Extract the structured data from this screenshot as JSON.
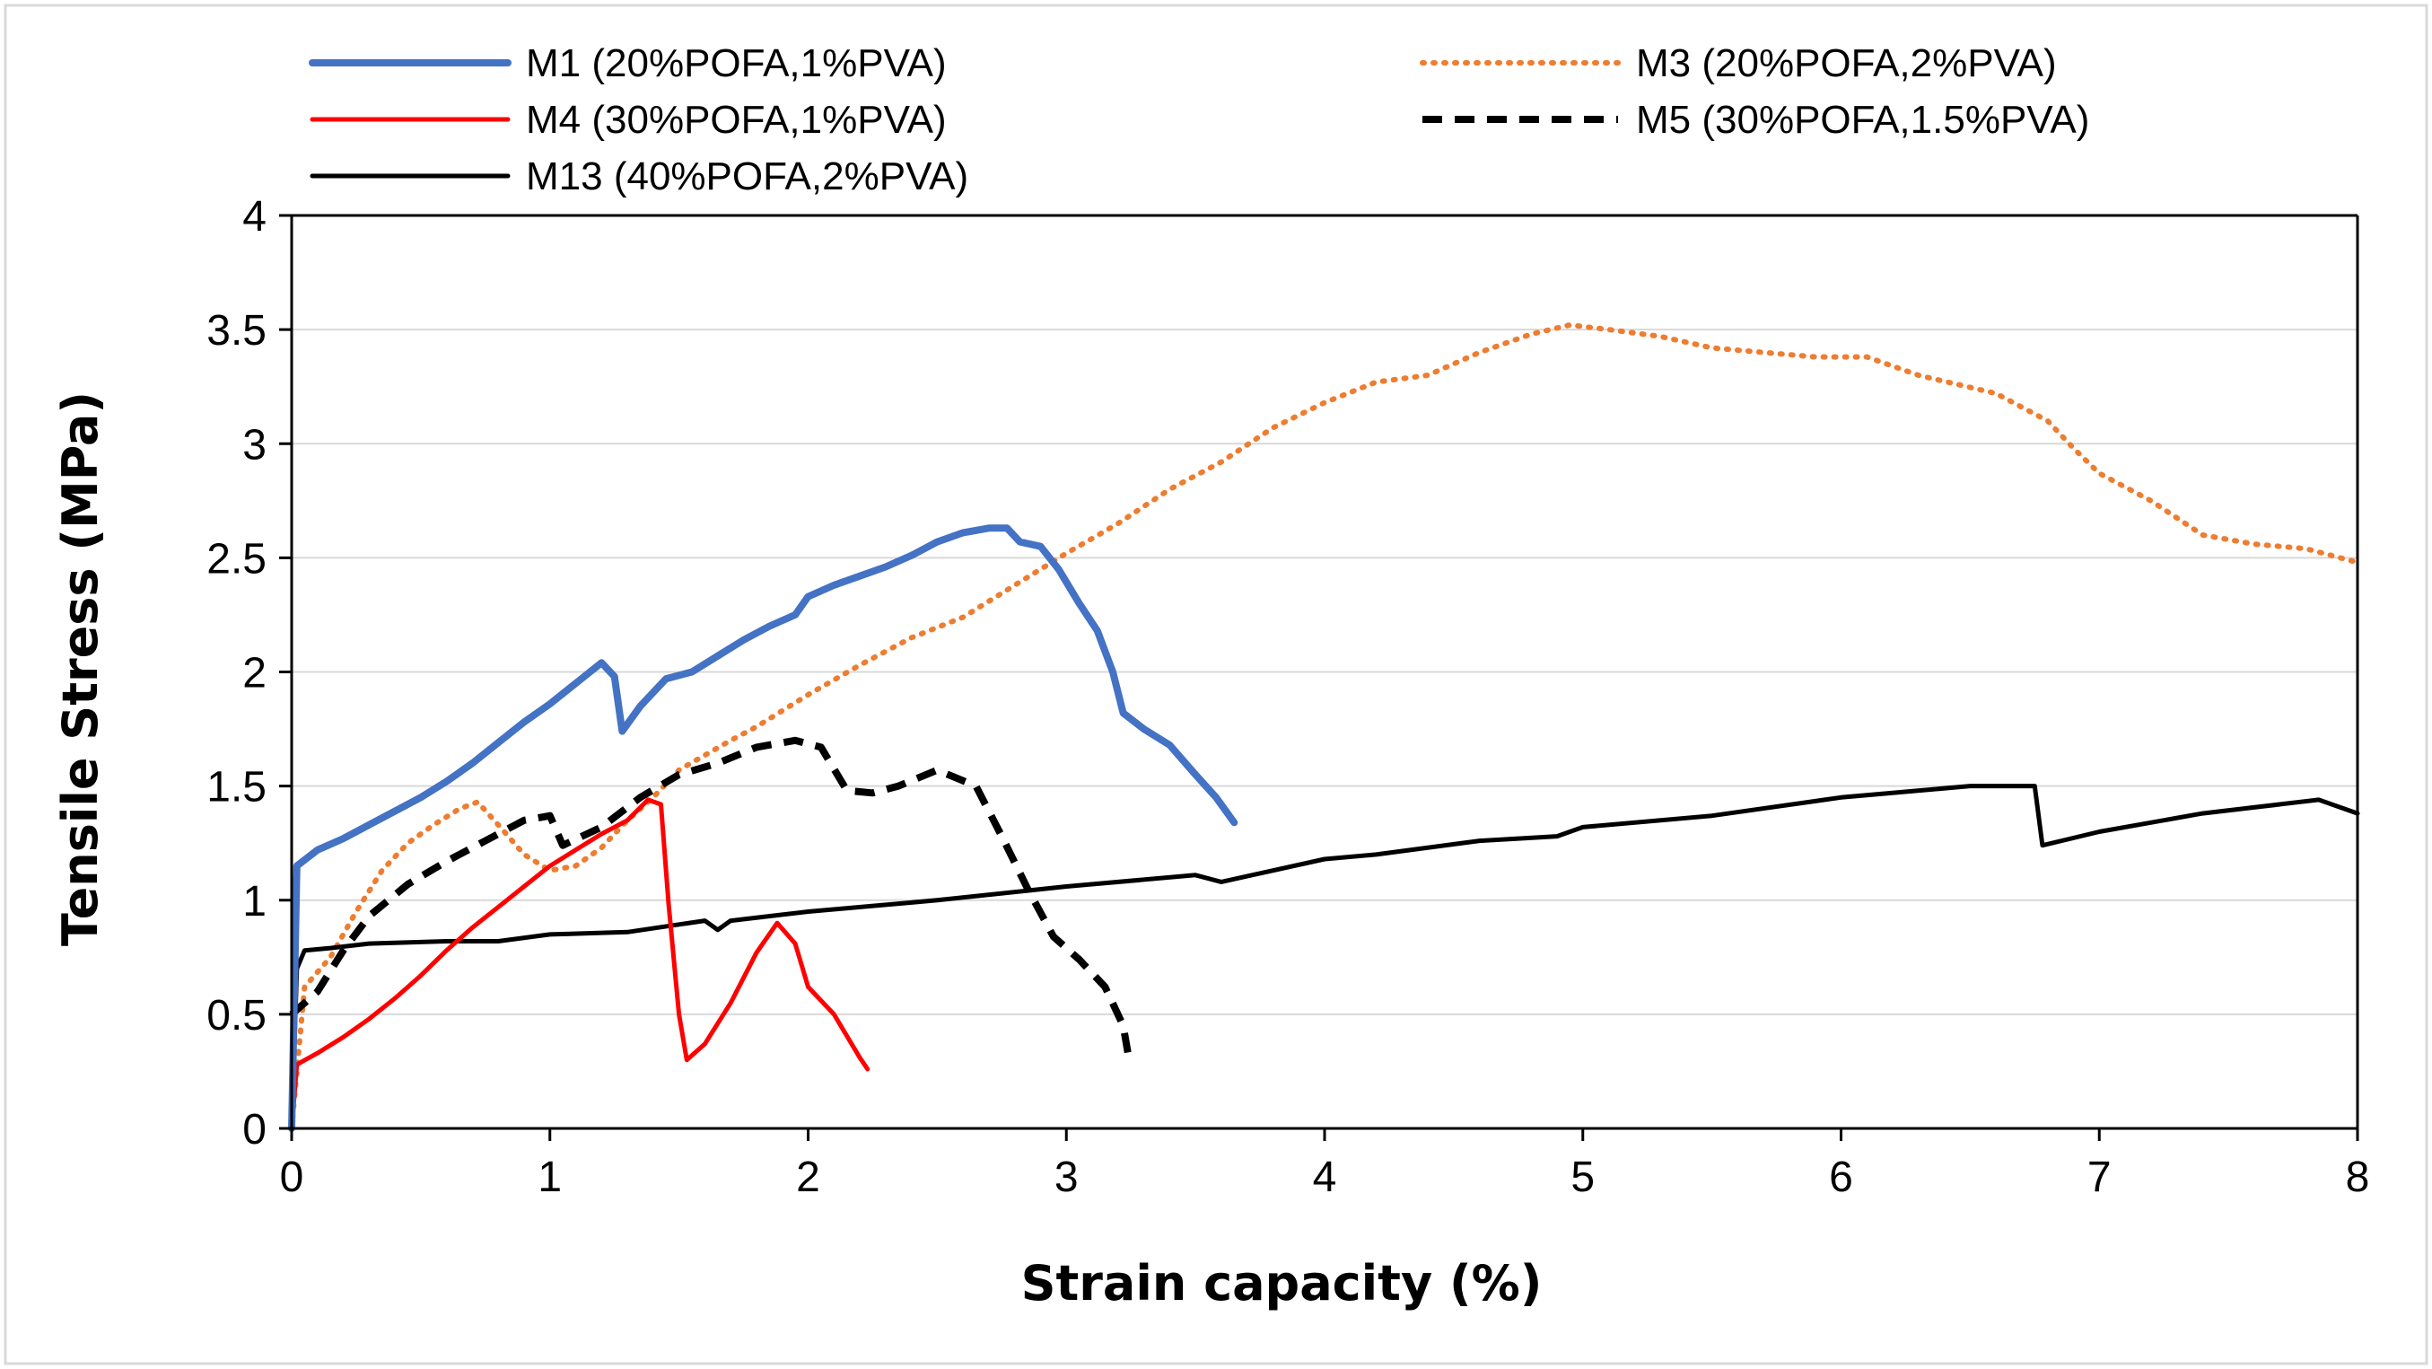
{
  "chart_data": {
    "type": "line",
    "title": "",
    "xlabel": "Strain capacity (%)",
    "ylabel": "Tensile Stress (MPa)",
    "xlim": [
      0,
      8
    ],
    "ylim": [
      0,
      4
    ],
    "x_ticks": [
      0,
      1,
      2,
      3,
      4,
      5,
      6,
      7,
      8
    ],
    "y_ticks": [
      0,
      0.5,
      1,
      1.5,
      2,
      2.5,
      3,
      3.5,
      4
    ],
    "grid": "horizontal",
    "legend_position": "top",
    "series": [
      {
        "name": "M1 (20%POFA,1%PVA)",
        "color": "#4472C4",
        "style": "solid-thick",
        "points": [
          [
            0.0,
            0.0
          ],
          [
            0.02,
            1.15
          ],
          [
            0.1,
            1.22
          ],
          [
            0.2,
            1.27
          ],
          [
            0.3,
            1.33
          ],
          [
            0.4,
            1.39
          ],
          [
            0.5,
            1.45
          ],
          [
            0.6,
            1.52
          ],
          [
            0.7,
            1.6
          ],
          [
            0.8,
            1.69
          ],
          [
            0.9,
            1.78
          ],
          [
            1.0,
            1.86
          ],
          [
            1.1,
            1.95
          ],
          [
            1.2,
            2.04
          ],
          [
            1.25,
            1.98
          ],
          [
            1.28,
            1.74
          ],
          [
            1.35,
            1.85
          ],
          [
            1.45,
            1.97
          ],
          [
            1.55,
            2.0
          ],
          [
            1.65,
            2.07
          ],
          [
            1.75,
            2.14
          ],
          [
            1.85,
            2.2
          ],
          [
            1.95,
            2.25
          ],
          [
            2.0,
            2.33
          ],
          [
            2.1,
            2.38
          ],
          [
            2.2,
            2.42
          ],
          [
            2.3,
            2.46
          ],
          [
            2.4,
            2.51
          ],
          [
            2.5,
            2.57
          ],
          [
            2.6,
            2.61
          ],
          [
            2.7,
            2.63
          ],
          [
            2.77,
            2.63
          ],
          [
            2.82,
            2.57
          ],
          [
            2.9,
            2.55
          ],
          [
            2.97,
            2.45
          ],
          [
            3.05,
            2.3
          ],
          [
            3.12,
            2.18
          ],
          [
            3.18,
            2.0
          ],
          [
            3.22,
            1.82
          ],
          [
            3.3,
            1.75
          ],
          [
            3.4,
            1.68
          ],
          [
            3.5,
            1.55
          ],
          [
            3.58,
            1.45
          ],
          [
            3.65,
            1.34
          ]
        ]
      },
      {
        "name": "M3 (20%POFA,2%PVA)",
        "color": "#ED7D31",
        "style": "dotted",
        "points": [
          [
            0.0,
            0.0
          ],
          [
            0.05,
            0.62
          ],
          [
            0.15,
            0.75
          ],
          [
            0.25,
            0.95
          ],
          [
            0.35,
            1.13
          ],
          [
            0.45,
            1.25
          ],
          [
            0.55,
            1.33
          ],
          [
            0.65,
            1.4
          ],
          [
            0.72,
            1.43
          ],
          [
            0.8,
            1.33
          ],
          [
            0.9,
            1.2
          ],
          [
            1.0,
            1.13
          ],
          [
            1.1,
            1.15
          ],
          [
            1.2,
            1.23
          ],
          [
            1.3,
            1.35
          ],
          [
            1.4,
            1.45
          ],
          [
            1.5,
            1.57
          ],
          [
            1.7,
            1.7
          ],
          [
            1.8,
            1.76
          ],
          [
            2.0,
            1.9
          ],
          [
            2.2,
            2.03
          ],
          [
            2.4,
            2.15
          ],
          [
            2.6,
            2.24
          ],
          [
            2.8,
            2.38
          ],
          [
            3.0,
            2.52
          ],
          [
            3.2,
            2.65
          ],
          [
            3.4,
            2.8
          ],
          [
            3.6,
            2.92
          ],
          [
            3.8,
            3.07
          ],
          [
            4.0,
            3.18
          ],
          [
            4.2,
            3.27
          ],
          [
            4.4,
            3.3
          ],
          [
            4.6,
            3.4
          ],
          [
            4.8,
            3.48
          ],
          [
            4.95,
            3.52
          ],
          [
            5.1,
            3.5
          ],
          [
            5.3,
            3.47
          ],
          [
            5.5,
            3.42
          ],
          [
            5.7,
            3.4
          ],
          [
            5.9,
            3.38
          ],
          [
            6.1,
            3.38
          ],
          [
            6.3,
            3.3
          ],
          [
            6.6,
            3.22
          ],
          [
            6.8,
            3.1
          ],
          [
            6.9,
            2.98
          ],
          [
            7.0,
            2.87
          ],
          [
            7.2,
            2.75
          ],
          [
            7.4,
            2.6
          ],
          [
            7.6,
            2.56
          ],
          [
            7.8,
            2.54
          ],
          [
            8.0,
            2.48
          ]
        ]
      },
      {
        "name": "M4 (30%POFA,1%PVA)",
        "color": "#FF0000",
        "style": "solid",
        "points": [
          [
            0.0,
            0.0
          ],
          [
            0.02,
            0.28
          ],
          [
            0.1,
            0.33
          ],
          [
            0.2,
            0.4
          ],
          [
            0.3,
            0.48
          ],
          [
            0.4,
            0.57
          ],
          [
            0.5,
            0.67
          ],
          [
            0.6,
            0.78
          ],
          [
            0.7,
            0.88
          ],
          [
            0.8,
            0.97
          ],
          [
            0.9,
            1.06
          ],
          [
            1.0,
            1.15
          ],
          [
            1.1,
            1.22
          ],
          [
            1.2,
            1.29
          ],
          [
            1.3,
            1.35
          ],
          [
            1.38,
            1.44
          ],
          [
            1.43,
            1.42
          ],
          [
            1.46,
            0.98
          ],
          [
            1.5,
            0.5
          ],
          [
            1.53,
            0.3
          ],
          [
            1.6,
            0.37
          ],
          [
            1.7,
            0.55
          ],
          [
            1.8,
            0.77
          ],
          [
            1.88,
            0.9
          ],
          [
            1.95,
            0.81
          ],
          [
            2.0,
            0.62
          ],
          [
            2.1,
            0.5
          ],
          [
            2.2,
            0.31
          ],
          [
            2.23,
            0.26
          ]
        ]
      },
      {
        "name": "M5 (30%POFA,1.5%PVA)",
        "color": "#000000",
        "style": "dashed",
        "points": [
          [
            0.0,
            0.5
          ],
          [
            0.1,
            0.6
          ],
          [
            0.2,
            0.78
          ],
          [
            0.3,
            0.93
          ],
          [
            0.45,
            1.07
          ],
          [
            0.6,
            1.17
          ],
          [
            0.75,
            1.26
          ],
          [
            0.9,
            1.35
          ],
          [
            1.0,
            1.37
          ],
          [
            1.05,
            1.24
          ],
          [
            1.2,
            1.32
          ],
          [
            1.35,
            1.45
          ],
          [
            1.5,
            1.55
          ],
          [
            1.65,
            1.6
          ],
          [
            1.8,
            1.67
          ],
          [
            1.95,
            1.7
          ],
          [
            2.05,
            1.67
          ],
          [
            2.15,
            1.48
          ],
          [
            2.25,
            1.47
          ],
          [
            2.35,
            1.5
          ],
          [
            2.5,
            1.57
          ],
          [
            2.65,
            1.5
          ],
          [
            2.75,
            1.28
          ],
          [
            2.85,
            1.05
          ],
          [
            2.95,
            0.84
          ],
          [
            3.05,
            0.74
          ],
          [
            3.15,
            0.62
          ],
          [
            3.22,
            0.45
          ],
          [
            3.24,
            0.32
          ]
        ]
      },
      {
        "name": "M13 (40%POFA,2%PVA)",
        "color": "#000000",
        "style": "solid",
        "points": [
          [
            0.0,
            0.0
          ],
          [
            0.02,
            0.7
          ],
          [
            0.05,
            0.78
          ],
          [
            0.15,
            0.79
          ],
          [
            0.3,
            0.81
          ],
          [
            0.6,
            0.82
          ],
          [
            0.8,
            0.82
          ],
          [
            1.0,
            0.85
          ],
          [
            1.3,
            0.86
          ],
          [
            1.6,
            0.91
          ],
          [
            1.65,
            0.87
          ],
          [
            1.7,
            0.91
          ],
          [
            2.0,
            0.95
          ],
          [
            2.5,
            1.0
          ],
          [
            3.0,
            1.06
          ],
          [
            3.5,
            1.11
          ],
          [
            3.6,
            1.08
          ],
          [
            4.0,
            1.18
          ],
          [
            4.2,
            1.2
          ],
          [
            4.6,
            1.26
          ],
          [
            4.9,
            1.28
          ],
          [
            5.0,
            1.32
          ],
          [
            5.5,
            1.37
          ],
          [
            6.0,
            1.45
          ],
          [
            6.5,
            1.5
          ],
          [
            6.75,
            1.5
          ],
          [
            6.78,
            1.24
          ],
          [
            7.0,
            1.3
          ],
          [
            7.4,
            1.38
          ],
          [
            7.85,
            1.44
          ],
          [
            8.0,
            1.38
          ]
        ]
      }
    ]
  }
}
